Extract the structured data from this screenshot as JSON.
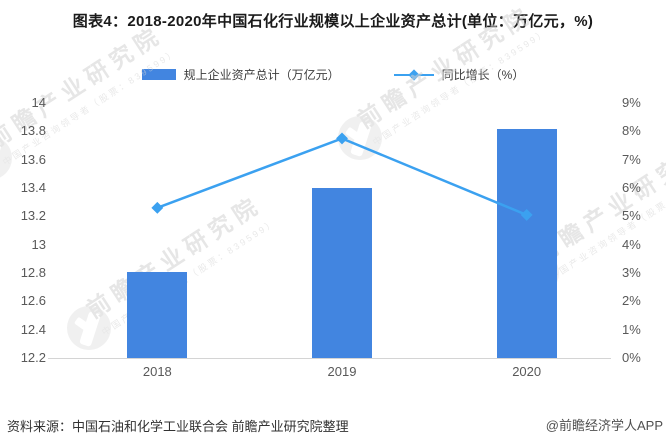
{
  "title": "图表4：2018-2020年中国石化行业规模以上企业资产总计(单位：万亿元，%)",
  "legend": {
    "bar_label": "规上企业资产总计（万亿元）",
    "line_label": "同比增长（%）"
  },
  "chart_data": {
    "type": "combo-bar-line",
    "categories": [
      "2018",
      "2019",
      "2020"
    ],
    "series": [
      {
        "name": "规上企业资产总计（万亿元）",
        "type": "bar",
        "y_axis": "left",
        "values": [
          12.81,
          13.4,
          13.82
        ],
        "color": "#4285e0"
      },
      {
        "name": "同比增长（%）",
        "type": "line",
        "y_axis": "right",
        "values": [
          5.3,
          7.75,
          5.05
        ],
        "color": "#3ba1f0",
        "marker": "diamond"
      }
    ],
    "left_axis": {
      "min": 12.2,
      "max": 14,
      "ticks": [
        "14",
        "13.8",
        "13.6",
        "13.4",
        "13.2",
        "13",
        "12.8",
        "12.6",
        "12.4",
        "12.2"
      ]
    },
    "right_axis": {
      "min": 0,
      "max": 9,
      "ticks": [
        "9%",
        "8%",
        "7%",
        "6%",
        "5%",
        "4%",
        "3%",
        "2%",
        "1%",
        "0%"
      ]
    },
    "grid": false,
    "legend_position": "top"
  },
  "watermark": {
    "text": "前瞻产业研究院",
    "subtext": "中国产业咨询领导者（股票：839599）"
  },
  "footer": {
    "source": "资料来源：中国石油和化学工业联合会 前瞻产业研究院整理",
    "credit": "@前瞻经济学人APP"
  },
  "colors": {
    "bar": "#4285e0",
    "line": "#3ba1f0",
    "axis_line": "#d4d4d4",
    "tick_text": "#595959",
    "title_text": "#1a1a1a"
  }
}
